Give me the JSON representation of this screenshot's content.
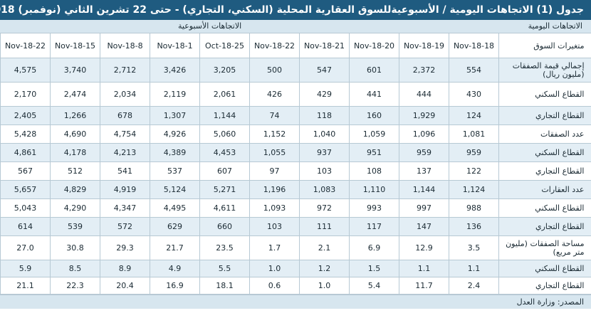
{
  "title": "جدول (1) الاتجاهات اليومية / الأسبوعيةللسوق العقارية المحلية (السكني، التجاري) - حتى 22 تشرين الثاني (نوفمبر) 2018",
  "group_headers": {
    "daily": "الاتجاهات اليومية",
    "weekly": "الاتجاهات الأسبوعية"
  },
  "label_header": "متغيرات السوق",
  "columns": [
    "18-Nov-18",
    "19-Nov-18",
    "20-Nov-18",
    "21-Nov-18",
    "22-Nov-18",
    "25-Oct-18",
    "1-Nov-18",
    "8-Nov-18",
    "15-Nov-18",
    "22-Nov-18"
  ],
  "rows": [
    {
      "label": "إجمالي قيمة الصفقات (مليون ريال)",
      "values": [
        "554",
        "2,372",
        "601",
        "547",
        "500",
        "3,205",
        "3,426",
        "2,712",
        "3,740",
        "4,575"
      ]
    },
    {
      "label": "القطاع السكني",
      "values": [
        "430",
        "444",
        "441",
        "429",
        "426",
        "2,061",
        "2,119",
        "2,034",
        "2,474",
        "2,170"
      ]
    },
    {
      "label": "القطاع التجاري",
      "values": [
        "124",
        "1,929",
        "160",
        "118",
        "74",
        "1,144",
        "1,307",
        "678",
        "1,266",
        "2,405"
      ]
    },
    {
      "label": "عدد الصفقات",
      "values": [
        "1,081",
        "1,096",
        "1,059",
        "1,040",
        "1,152",
        "5,060",
        "4,926",
        "4,754",
        "4,690",
        "5,428"
      ]
    },
    {
      "label": "القطاع السكني",
      "values": [
        "959",
        "959",
        "951",
        "937",
        "1,055",
        "4,453",
        "4,389",
        "4,213",
        "4,178",
        "4,861"
      ]
    },
    {
      "label": "القطاع التجاري",
      "values": [
        "122",
        "137",
        "108",
        "103",
        "97",
        "607",
        "537",
        "541",
        "512",
        "567"
      ]
    },
    {
      "label": "عدد العقارات",
      "values": [
        "1,124",
        "1,144",
        "1,110",
        "1,083",
        "1,196",
        "5,271",
        "5,124",
        "4,919",
        "4,829",
        "5,657"
      ]
    },
    {
      "label": "القطاع السكني",
      "values": [
        "988",
        "997",
        "993",
        "972",
        "1,093",
        "4,611",
        "4,495",
        "4,347",
        "4,290",
        "5,043"
      ]
    },
    {
      "label": "القطاع التجاري",
      "values": [
        "136",
        "147",
        "117",
        "111",
        "103",
        "660",
        "629",
        "572",
        "539",
        "614"
      ]
    },
    {
      "label": "مساحة الصفقات (مليون متر مربع)",
      "values": [
        "3.5",
        "12.9",
        "6.9",
        "2.1",
        "1.7",
        "23.5",
        "21.7",
        "29.3",
        "30.8",
        "27.0"
      ]
    },
    {
      "label": "القطاع السكني",
      "values": [
        "1.1",
        "1.1",
        "1.5",
        "1.2",
        "1.0",
        "5.5",
        "4.9",
        "8.9",
        "8.5",
        "5.9"
      ]
    },
    {
      "label": "القطاع التجاري",
      "values": [
        "2.4",
        "11.7",
        "5.4",
        "1.0",
        "0.6",
        "18.1",
        "16.9",
        "20.4",
        "22.3",
        "21.1"
      ]
    }
  ],
  "source": "المصدر: وزارة العدل",
  "colors": {
    "title_bg": "#1f5b80",
    "header_band": "#d7e6ef",
    "alt_row": "#e3eef5"
  }
}
